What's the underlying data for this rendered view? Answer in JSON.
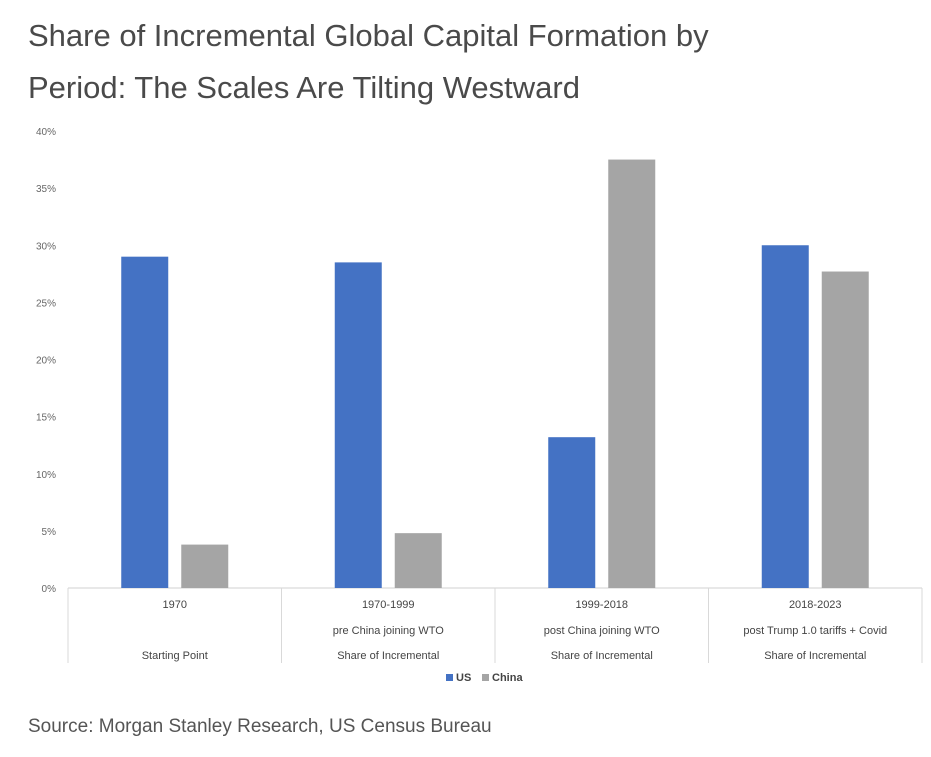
{
  "title_line1": "Share of Incremental Global Capital Formation by",
  "title_line2": "Period: The Scales Are Tilting Westward",
  "source": "Source: Morgan Stanley Research, US Census Bureau",
  "chart_data": {
    "type": "bar",
    "categories": [
      {
        "line1": "1970",
        "line2": "",
        "line3": "Starting Point"
      },
      {
        "line1": "1970-1999",
        "line2": "pre China joining WTO",
        "line3": "Share of Incremental"
      },
      {
        "line1": "1999-2018",
        "line2": "post China joining WTO",
        "line3": "Share of Incremental"
      },
      {
        "line1": "2018-2023",
        "line2": "post Trump 1.0 tariffs + Covid",
        "line3": "Share of Incremental"
      }
    ],
    "series": [
      {
        "name": "US",
        "color": "#4472c4",
        "values": [
          29,
          28.5,
          13.2,
          30
        ]
      },
      {
        "name": "China",
        "color": "#a5a5a5",
        "values": [
          3.8,
          4.8,
          37.5,
          27.7
        ]
      }
    ],
    "yticks": [
      "0%",
      "5%",
      "10%",
      "15%",
      "20%",
      "25%",
      "30%",
      "35%",
      "40%"
    ],
    "ylim": [
      0,
      40
    ],
    "grid": false,
    "legend": "bottom-center"
  }
}
